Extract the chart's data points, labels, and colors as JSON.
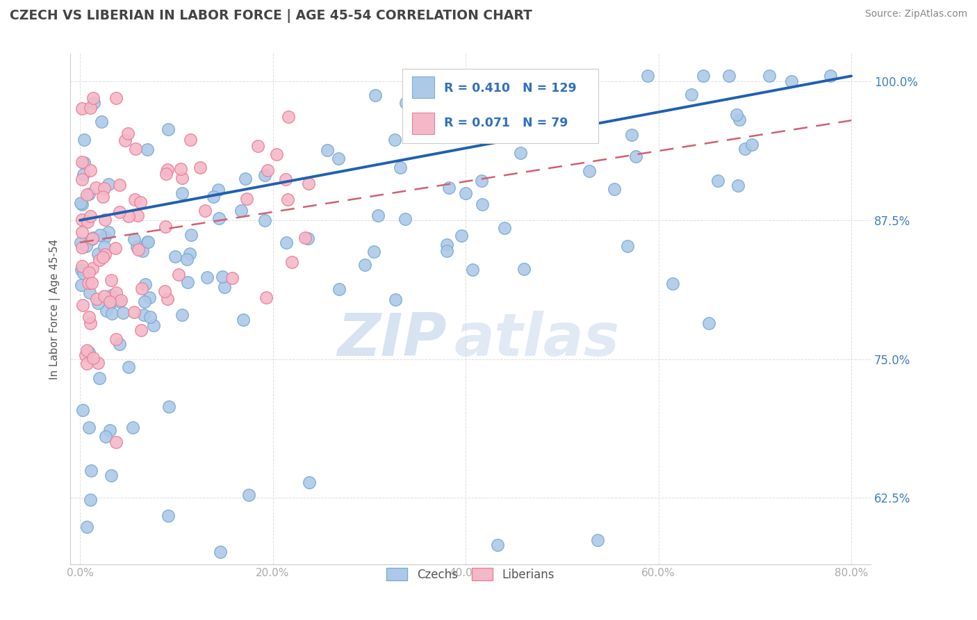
{
  "title": "CZECH VS LIBERIAN IN LABOR FORCE | AGE 45-54 CORRELATION CHART",
  "source": "Source: ZipAtlas.com",
  "ylabel": "In Labor Force | Age 45-54",
  "xlim": [
    -0.01,
    0.82
  ],
  "ylim": [
    0.565,
    1.025
  ],
  "xticks": [
    0.0,
    0.2,
    0.4,
    0.6,
    0.8
  ],
  "yticks": [
    0.625,
    0.75,
    0.875,
    1.0
  ],
  "czech_color": "#aec9e8",
  "czech_edge_color": "#7aacd4",
  "liberian_color": "#f5b8c8",
  "liberian_edge_color": "#e8809a",
  "czech_R": 0.41,
  "czech_N": 129,
  "liberian_R": 0.071,
  "liberian_N": 79,
  "czech_line_color": "#2060b0",
  "liberian_line_color": "#d06070",
  "watermark_zip": "ZIP",
  "watermark_atlas": "atlas",
  "legend_color": "#3070c0",
  "legend_label_czech": "Czechs",
  "legend_label_liberian": "Liberians",
  "title_color": "#444444",
  "source_color": "#888888",
  "ylabel_color": "#555555",
  "ytick_color": "#4080c0",
  "xtick_color": "#aaaaaa",
  "grid_color": "#dddddd"
}
